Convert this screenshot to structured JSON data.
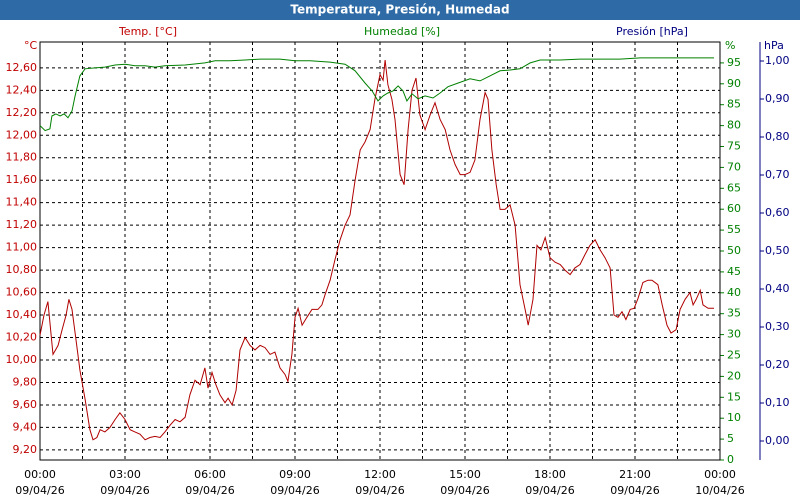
{
  "chart_data": {
    "type": "line",
    "title": "Temperatura, Presión, Humedad",
    "y_label": "Temp. [°C]",
    "y_unit": "°C",
    "y2_label": "Humedad [%]",
    "y2_unit": "%",
    "y3_label": "Presión [hPa]",
    "y3_unit": "hPa",
    "xlim": [
      0,
      24
    ],
    "xticks": [
      {
        "value": 0,
        "label": "00:00",
        "date": "09/04/26"
      },
      {
        "value": 3,
        "label": "03:00",
        "date": "09/04/26"
      },
      {
        "value": 6,
        "label": "06:00",
        "date": "09/04/26"
      },
      {
        "value": 9,
        "label": "09:00",
        "date": "09/04/26"
      },
      {
        "value": 12,
        "label": "12:00",
        "date": "09/04/26"
      },
      {
        "value": 15,
        "label": "15:00",
        "date": "09/04/26"
      },
      {
        "value": 18,
        "label": "18:00",
        "date": "09/04/26"
      },
      {
        "value": 21,
        "label": "21:00",
        "date": "09/04/26"
      },
      {
        "value": 24,
        "label": "00:00",
        "date": "10/04/26"
      }
    ],
    "x_minor_ticks": [
      1.5,
      4.5,
      7.5,
      10.5,
      13.5,
      16.5,
      19.5,
      22.5
    ],
    "ylim": [
      9.11,
      12.83
    ],
    "yticks": [
      {
        "value": 9.2,
        "label": "9,20"
      },
      {
        "value": 9.4,
        "label": "9,40"
      },
      {
        "value": 9.6,
        "label": "9,60"
      },
      {
        "value": 9.8,
        "label": "9,80"
      },
      {
        "value": 10.0,
        "label": "10,00"
      },
      {
        "value": 10.2,
        "label": "10,20"
      },
      {
        "value": 10.4,
        "label": "10,40"
      },
      {
        "value": 10.6,
        "label": "10,60"
      },
      {
        "value": 10.8,
        "label": "10,80"
      },
      {
        "value": 11.0,
        "label": "11,00"
      },
      {
        "value": 11.2,
        "label": "11,20"
      },
      {
        "value": 11.4,
        "label": "11,40"
      },
      {
        "value": 11.6,
        "label": "11,60"
      },
      {
        "value": 11.8,
        "label": "11,80"
      },
      {
        "value": 12.0,
        "label": "12,00"
      },
      {
        "value": 12.2,
        "label": "12,20"
      },
      {
        "value": 12.4,
        "label": "12,40"
      },
      {
        "value": 12.6,
        "label": "12,60"
      }
    ],
    "y2lim": [
      0,
      100
    ],
    "y2ticks": [
      0,
      5,
      10,
      15,
      20,
      25,
      30,
      35,
      40,
      45,
      50,
      55,
      60,
      65,
      70,
      75,
      80,
      85,
      90,
      95
    ],
    "y3lim": [
      -0.05,
      1.05
    ],
    "y3ticks": [
      {
        "value": 0,
        "label": "0,00"
      },
      {
        "value": 0.1,
        "label": "0,10"
      },
      {
        "value": 0.2,
        "label": "0,20"
      },
      {
        "value": 0.3,
        "label": "0,30"
      },
      {
        "value": 0.4,
        "label": "0,40"
      },
      {
        "value": 0.5,
        "label": "0,50"
      },
      {
        "value": 0.6,
        "label": "0,60"
      },
      {
        "value": 0.7,
        "label": "0,70"
      },
      {
        "value": 0.8,
        "label": "0,80"
      },
      {
        "value": 0.9,
        "label": "0,90"
      },
      {
        "value": 1.0,
        "label": "1,00"
      }
    ],
    "grid": true,
    "y_color": "#c00000",
    "y2_color": "#008000",
    "y3_color": "#000080",
    "series": [
      {
        "name": "Temp. [°C]",
        "color": "#b00000",
        "axis": "y",
        "x": [
          0,
          0.14,
          0.28,
          0.46,
          0.64,
          0.78,
          0.92,
          1.02,
          1.13,
          1.27,
          1.41,
          1.59,
          1.76,
          1.87,
          2.01,
          2.12,
          2.29,
          2.47,
          2.65,
          2.82,
          3.0,
          3.18,
          3.35,
          3.53,
          3.71,
          3.88,
          4.06,
          4.24,
          4.41,
          4.59,
          4.77,
          4.94,
          5.12,
          5.29,
          5.47,
          5.65,
          5.82,
          5.93,
          6.07,
          6.21,
          6.35,
          6.53,
          6.64,
          6.78,
          6.92,
          7.06,
          7.24,
          7.41,
          7.59,
          7.77,
          7.94,
          8.12,
          8.29,
          8.47,
          8.65,
          8.75,
          8.89,
          9.0,
          9.11,
          9.25,
          9.42,
          9.6,
          9.81,
          9.95,
          10.06,
          10.24,
          10.41,
          10.59,
          10.77,
          10.94,
          11.12,
          11.3,
          11.47,
          11.65,
          11.82,
          12.0,
          12.11,
          12.18,
          12.28,
          12.42,
          12.53,
          12.71,
          12.85,
          12.99,
          13.13,
          13.27,
          13.41,
          13.59,
          13.77,
          13.94,
          14.12,
          14.3,
          14.47,
          14.65,
          14.83,
          15.0,
          15.18,
          15.35,
          15.53,
          15.71,
          15.81,
          15.95,
          16.1,
          16.24,
          16.41,
          16.59,
          16.77,
          16.94,
          17.12,
          17.23,
          17.4,
          17.54,
          17.68,
          17.83,
          18.0,
          18.18,
          18.36,
          18.53,
          18.71,
          18.88,
          19.06,
          19.24,
          19.41,
          19.59,
          19.77,
          19.94,
          20.12,
          20.26,
          20.4,
          20.54,
          20.68,
          20.83,
          20.97,
          21.11,
          21.28,
          21.46,
          21.6,
          21.81,
          21.96,
          22.13,
          22.27,
          22.45,
          22.59,
          22.77,
          22.94,
          23.05,
          23.16,
          23.3,
          23.4,
          23.58,
          23.79
        ],
        "values": [
          10.22,
          10.4,
          10.52,
          10.05,
          10.13,
          10.27,
          10.4,
          10.54,
          10.45,
          10.18,
          9.91,
          9.65,
          9.38,
          9.29,
          9.31,
          9.38,
          9.36,
          9.4,
          9.47,
          9.53,
          9.47,
          9.38,
          9.36,
          9.34,
          9.29,
          9.31,
          9.32,
          9.31,
          9.36,
          9.42,
          9.47,
          9.45,
          9.49,
          9.69,
          9.82,
          9.78,
          9.93,
          9.75,
          9.89,
          9.78,
          9.69,
          9.62,
          9.66,
          9.6,
          9.73,
          10.09,
          10.2,
          10.13,
          10.09,
          10.13,
          10.11,
          10.05,
          10.07,
          9.93,
          9.87,
          9.81,
          10.05,
          10.38,
          10.46,
          10.31,
          10.38,
          10.45,
          10.45,
          10.49,
          10.58,
          10.71,
          10.89,
          11.07,
          11.2,
          11.29,
          11.6,
          11.87,
          11.94,
          12.05,
          12.32,
          12.54,
          12.49,
          12.67,
          12.45,
          12.32,
          12.14,
          11.65,
          11.56,
          12.05,
          12.4,
          12.51,
          12.18,
          12.05,
          12.18,
          12.29,
          12.14,
          12.05,
          11.87,
          11.74,
          11.65,
          11.65,
          11.67,
          11.78,
          12.14,
          12.38,
          12.32,
          11.87,
          11.56,
          11.34,
          11.34,
          11.38,
          11.2,
          10.67,
          10.45,
          10.31,
          10.54,
          11.02,
          10.98,
          11.09,
          10.91,
          10.87,
          10.85,
          10.8,
          10.76,
          10.82,
          10.85,
          10.94,
          11.02,
          11.07,
          10.98,
          10.91,
          10.82,
          10.4,
          10.38,
          10.43,
          10.36,
          10.45,
          10.46,
          10.55,
          10.69,
          10.71,
          10.71,
          10.67,
          10.49,
          10.31,
          10.24,
          10.27,
          10.45,
          10.54,
          10.6,
          10.49,
          10.54,
          10.62,
          10.49,
          10.46,
          10.46
        ]
      },
      {
        "name": "Humedad [%]",
        "color": "#008000",
        "axis": "y2",
        "x": [
          0,
          0.18,
          0.35,
          0.42,
          0.56,
          0.71,
          0.85,
          0.99,
          1.13,
          1.24,
          1.41,
          1.59,
          1.94,
          2.29,
          2.65,
          3.0,
          3.35,
          3.71,
          4.06,
          4.41,
          5.12,
          5.82,
          6.18,
          6.71,
          7.24,
          7.77,
          8.47,
          9.0,
          9.53,
          10.24,
          10.77,
          11.12,
          11.47,
          11.72,
          11.93,
          12.11,
          12.28,
          12.46,
          12.64,
          12.81,
          12.95,
          13.13,
          13.34,
          13.59,
          13.87,
          14.12,
          14.4,
          14.76,
          15.18,
          15.53,
          15.88,
          16.24,
          16.59,
          16.94,
          17.3,
          17.65,
          18.36,
          19.06,
          19.77,
          20.47,
          21.18,
          21.88,
          22.59,
          23.3,
          23.79
        ],
        "values": [
          80.0,
          78.8,
          79.2,
          82.3,
          82.8,
          82.3,
          82.8,
          81.9,
          83.5,
          87.1,
          91.9,
          93.6,
          93.8,
          94.0,
          94.5,
          94.7,
          94.3,
          94.3,
          94.0,
          94.3,
          94.5,
          95.0,
          95.5,
          95.5,
          95.7,
          95.9,
          95.9,
          95.5,
          95.5,
          95.2,
          94.7,
          93.1,
          90.2,
          88.3,
          85.9,
          87.1,
          87.8,
          88.3,
          89.5,
          88.3,
          85.9,
          87.6,
          86.4,
          87.1,
          86.6,
          87.8,
          89.3,
          90.2,
          91.2,
          90.7,
          91.9,
          93.1,
          93.3,
          93.6,
          95.0,
          95.7,
          95.7,
          95.9,
          95.9,
          95.9,
          96.2,
          96.2,
          96.2,
          96.2,
          96.2
        ]
      }
    ]
  }
}
